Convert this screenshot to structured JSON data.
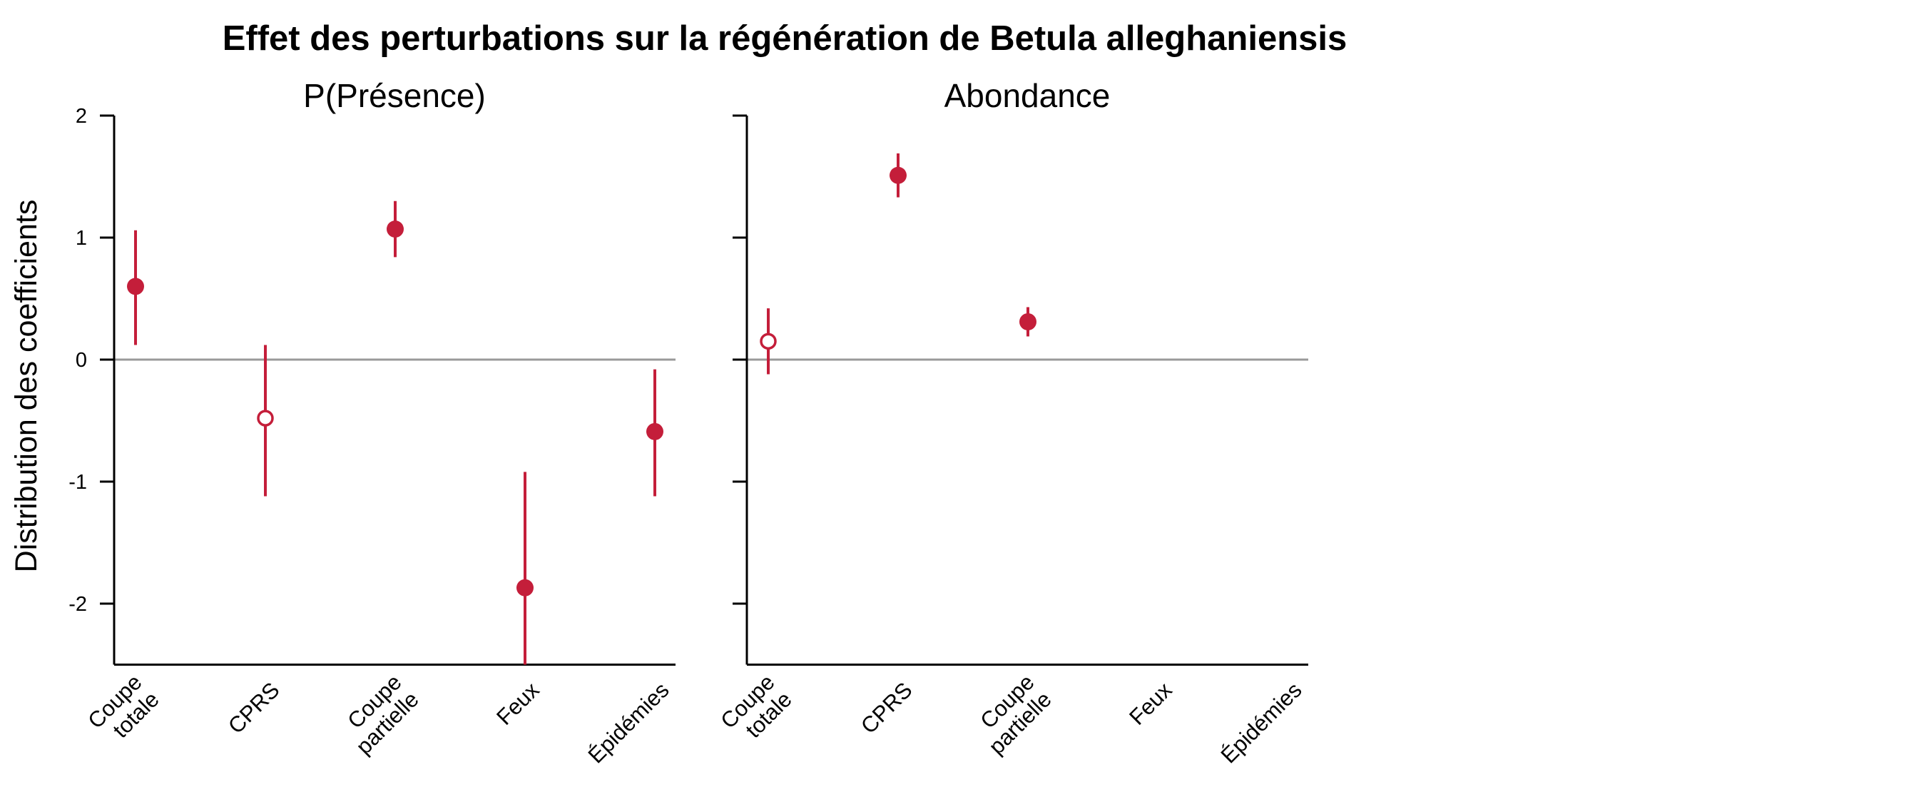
{
  "chart_data": {
    "type": "scatter",
    "title": "Effet des perturbations sur la régénération de Betula alleghaniensis",
    "ylabel": "Distribution des coefficients",
    "ylim": [
      -2.5,
      2
    ],
    "yticks": [
      2,
      1,
      0,
      -1,
      -2
    ],
    "ytick_labels": [
      "2",
      "1",
      "0",
      "-1",
      "-2"
    ],
    "reference_line_y": 0,
    "colors": {
      "point": "#c41e3a",
      "zero_line": "#999999",
      "axis": "#000000"
    },
    "categories": [
      {
        "lines": [
          "Coupe",
          "totale"
        ]
      },
      {
        "lines": [
          "CPRS"
        ]
      },
      {
        "lines": [
          "Coupe",
          "partielle"
        ]
      },
      {
        "lines": [
          "Feux"
        ]
      },
      {
        "lines": [
          "Épidémies"
        ]
      }
    ],
    "panels": [
      {
        "title": "P(Présence)",
        "points": [
          {
            "category_index": 0,
            "estimate": 0.6,
            "low": 0.12,
            "high": 1.06,
            "filled": true
          },
          {
            "category_index": 1,
            "estimate": -0.48,
            "low": -1.12,
            "high": 0.12,
            "filled": false
          },
          {
            "category_index": 2,
            "estimate": 1.07,
            "low": 0.84,
            "high": 1.3,
            "filled": true
          },
          {
            "category_index": 3,
            "estimate": -1.87,
            "low": -2.5,
            "high": -0.92,
            "filled": true
          },
          {
            "category_index": 4,
            "estimate": -0.59,
            "low": -1.12,
            "high": -0.08,
            "filled": true
          }
        ]
      },
      {
        "title": "Abondance",
        "points": [
          {
            "category_index": 0,
            "estimate": 0.15,
            "low": -0.12,
            "high": 0.42,
            "filled": false
          },
          {
            "category_index": 1,
            "estimate": 1.51,
            "low": 1.33,
            "high": 1.69,
            "filled": true
          },
          {
            "category_index": 2,
            "estimate": 0.31,
            "low": 0.19,
            "high": 0.43,
            "filled": true
          }
        ]
      }
    ]
  }
}
